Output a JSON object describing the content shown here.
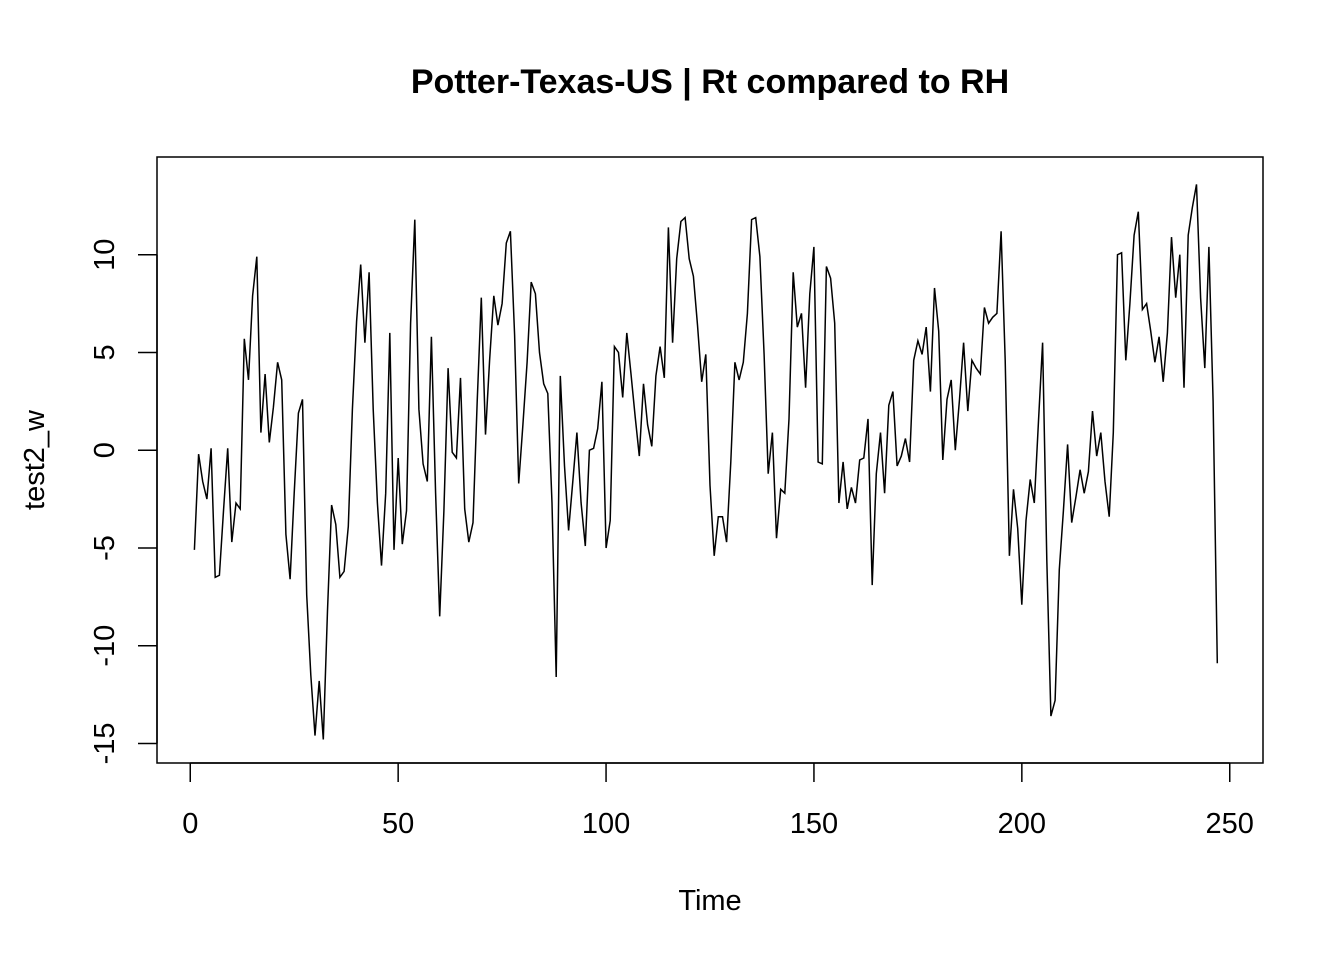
{
  "chart_data": {
    "type": "line",
    "title": "Potter-Texas-US | Rt compared to RH",
    "xlabel": "Time",
    "ylabel": "test2_w",
    "xlim": [
      -8,
      258
    ],
    "ylim": [
      -16,
      15
    ],
    "x_ticks": [
      0,
      50,
      100,
      150,
      200,
      250
    ],
    "y_ticks": [
      -15,
      -10,
      -5,
      0,
      5,
      10
    ],
    "grid": false,
    "legend": "none",
    "line_color": "#000000",
    "series": [
      {
        "x_start": 1,
        "values": [
          -5.1,
          -0.2,
          -1.6,
          -2.5,
          0.1,
          -6.5,
          -6.4,
          -3.1,
          0.1,
          -4.7,
          -2.7,
          -3.0,
          5.7,
          3.6,
          7.9,
          9.9,
          0.9,
          3.9,
          0.4,
          2.2,
          4.5,
          3.6,
          -4.3,
          -6.6,
          -2.2,
          1.9,
          2.6,
          -7.4,
          -11.5,
          -14.6,
          -11.8,
          -14.8,
          -8.2,
          -2.8,
          -3.8,
          -6.5,
          -6.2,
          -3.9,
          2.1,
          6.6,
          9.5,
          5.5,
          9.1,
          2.1,
          -2.7,
          -5.9,
          -2.2,
          6.0,
          -5.1,
          -0.4,
          -4.8,
          -3.1,
          6.5,
          11.8,
          2.1,
          -0.7,
          -1.6,
          5.8,
          -2.2,
          -8.5,
          -3.1,
          4.2,
          -0.1,
          -0.4,
          3.7,
          -3.0,
          -4.7,
          -3.7,
          2.5,
          7.8,
          0.8,
          4.6,
          7.9,
          6.4,
          7.5,
          10.6,
          11.2,
          5.9,
          -1.7,
          1.3,
          4.5,
          8.6,
          8.0,
          5.0,
          3.4,
          2.9,
          -2.7,
          -11.6,
          3.8,
          -0.8,
          -4.1,
          -1.6,
          0.9,
          -2.7,
          -4.9,
          0.0,
          0.1,
          1.1,
          3.5,
          -5.0,
          -3.6,
          5.3,
          5.0,
          2.7,
          6.0,
          3.9,
          1.7,
          -0.3,
          3.4,
          1.3,
          0.2,
          3.8,
          5.3,
          3.7,
          11.4,
          5.5,
          9.8,
          11.7,
          11.9,
          9.8,
          8.9,
          6.4,
          3.5,
          4.9,
          -1.8,
          -5.4,
          -3.4,
          -3.4,
          -4.7,
          -0.6,
          4.5,
          3.6,
          4.5,
          7.0,
          11.8,
          11.9,
          9.9,
          4.9,
          -1.2,
          0.9,
          -4.5,
          -2.0,
          -2.2,
          1.6,
          9.1,
          6.3,
          7.0,
          3.2,
          8.0,
          10.4,
          -0.6,
          -0.7,
          9.4,
          8.8,
          6.5,
          -2.7,
          -0.6,
          -3.0,
          -1.9,
          -2.7,
          -0.5,
          -0.4,
          1.6,
          -6.9,
          -1.2,
          0.9,
          -2.2,
          2.3,
          3.0,
          -0.8,
          -0.3,
          0.6,
          -0.6,
          4.6,
          5.6,
          4.9,
          6.3,
          3.0,
          8.3,
          6.1,
          -0.5,
          2.6,
          3.6,
          0.0,
          2.6,
          5.5,
          2.0,
          4.6,
          4.2,
          3.9,
          7.3,
          6.5,
          6.8,
          7.0,
          11.2,
          4.6,
          -5.4,
          -2.0,
          -4.0,
          -7.9,
          -3.6,
          -1.5,
          -2.7,
          1.5,
          5.5,
          -5.6,
          -13.6,
          -12.8,
          -6.1,
          -3.1,
          0.3,
          -3.7,
          -2.4,
          -1.0,
          -2.2,
          -1.1,
          2.0,
          -0.3,
          0.9,
          -1.6,
          -3.4,
          0.9,
          10.0,
          10.1,
          4.6,
          7.5,
          11.0,
          12.2,
          7.2,
          7.5,
          6.1,
          4.5,
          5.8,
          3.5,
          6.0,
          10.9,
          7.8,
          10.0,
          3.2,
          11.0,
          12.4,
          13.6,
          7.8,
          4.2,
          10.4,
          2.5,
          -10.9
        ]
      }
    ]
  }
}
